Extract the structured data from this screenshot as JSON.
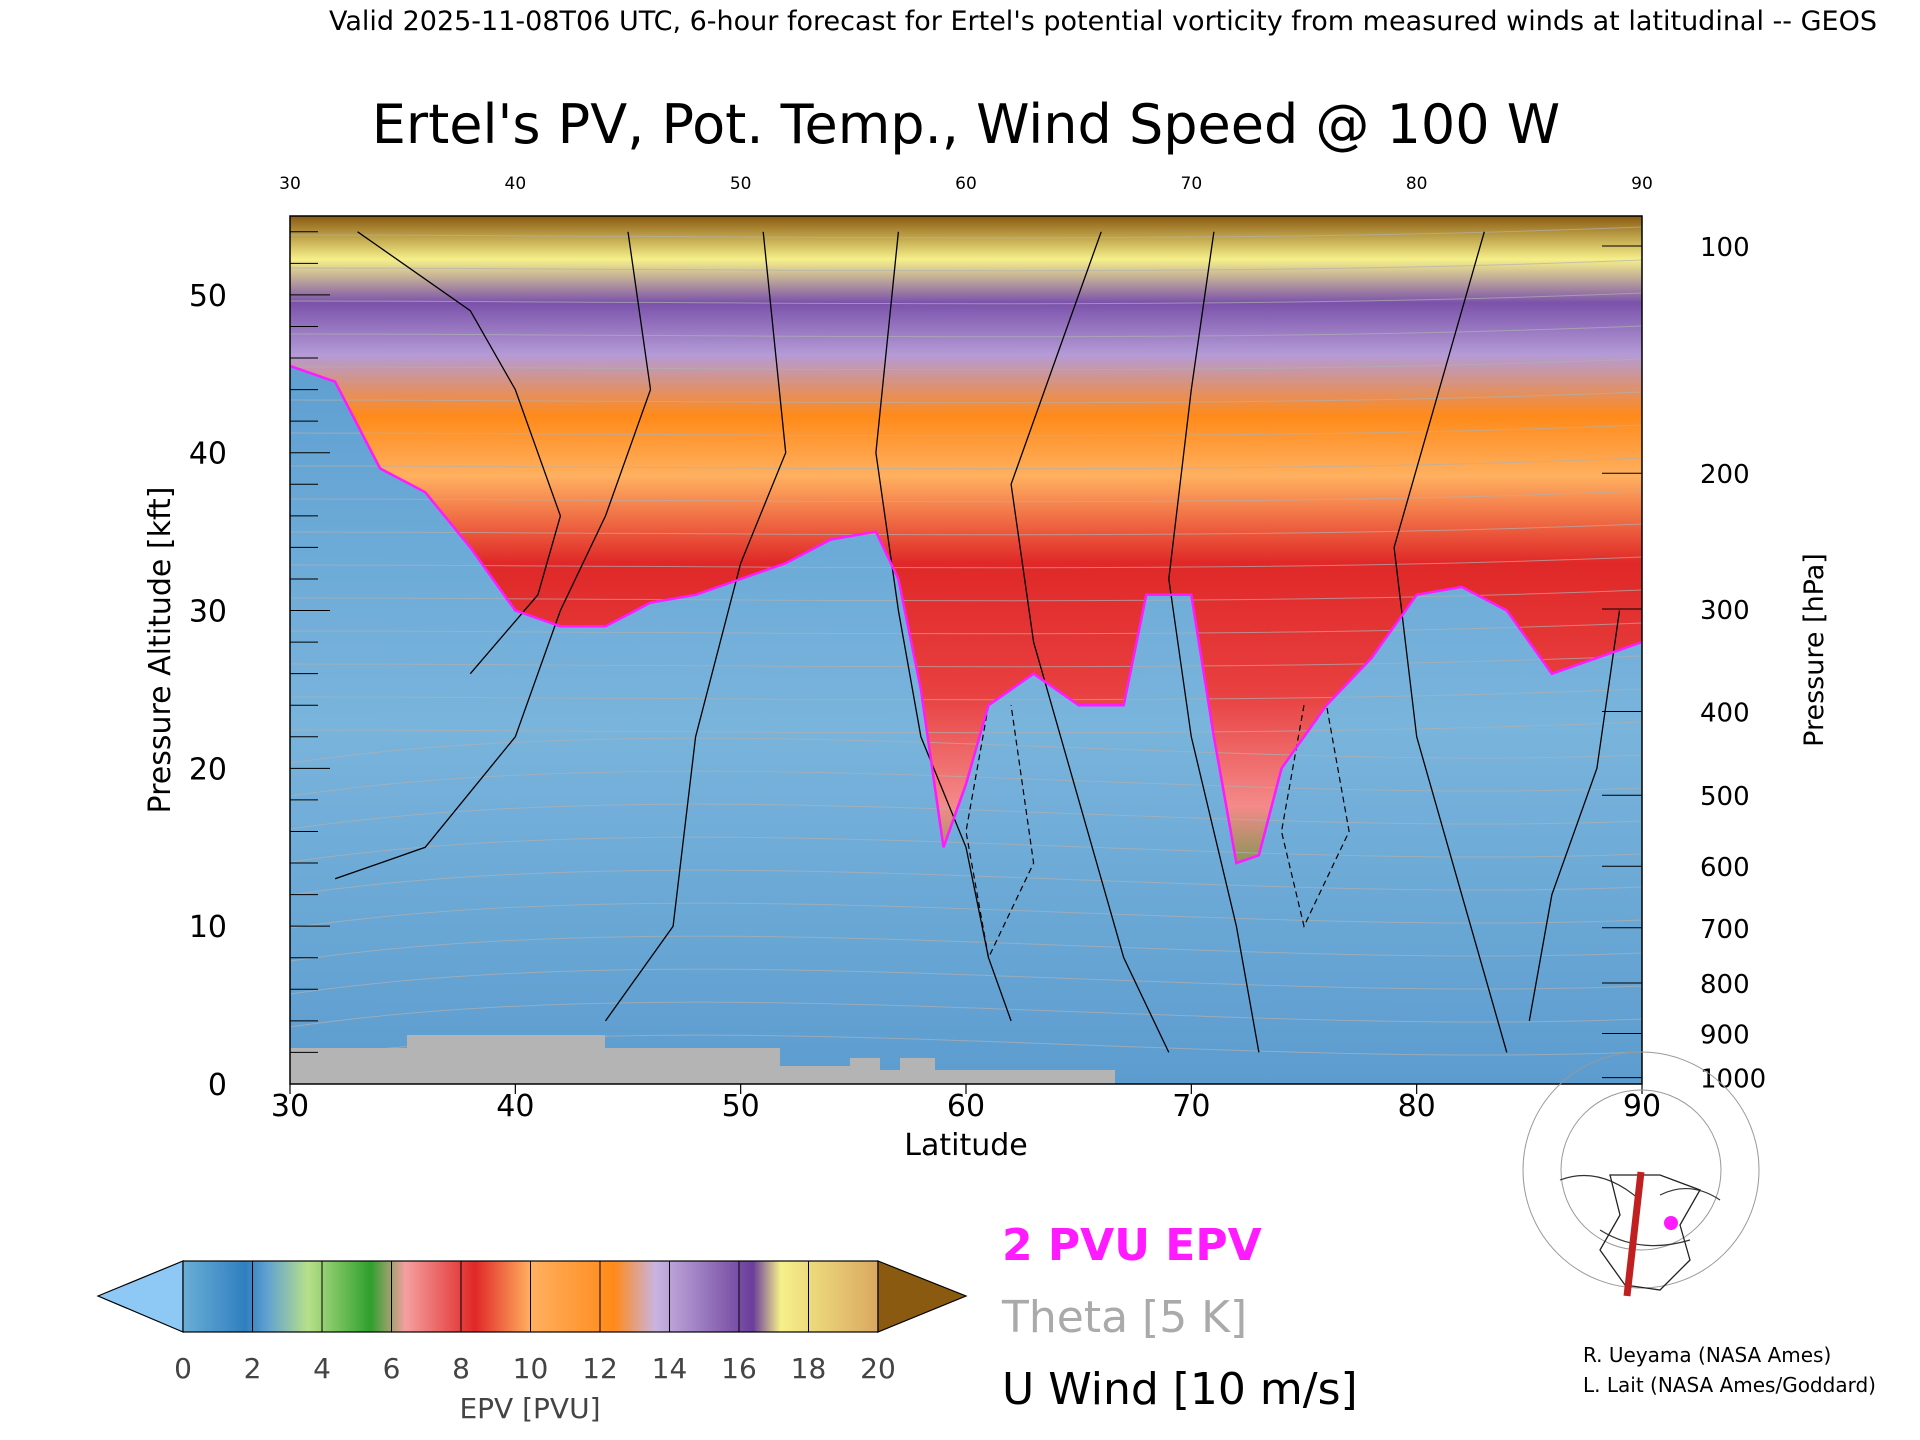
{
  "header": {
    "valid_line": "Valid 2025-11-08T06 UTC, 6-hour forecast for Ertel's potential vorticity from measured winds at latitudinal -- GEOS",
    "title": "Ertel's PV, Pot. Temp., Wind Speed @ 100 W"
  },
  "chart_data": {
    "type": "heatmap",
    "title": "Ertel's PV, Pot. Temp., Wind Speed @ 100 W",
    "xlabel": "Latitude",
    "ylabel": "Pressure Altitude [kft]",
    "y2label": "Pressure [hPa]",
    "xlim": [
      30,
      90
    ],
    "ylim": [
      0,
      55
    ],
    "x_ticks": [
      30,
      40,
      50,
      60,
      70,
      80,
      90
    ],
    "x_tick_labels": [
      "30",
      "40",
      "50",
      "60",
      "70",
      "80",
      "90"
    ],
    "y_ticks": [
      0,
      10,
      20,
      30,
      40,
      50
    ],
    "y_tick_labels": [
      "0",
      "10",
      "20",
      "30",
      "40",
      "50"
    ],
    "pressure_ticks": [
      {
        "label": "100",
        "kft": 53.1
      },
      {
        "label": "200",
        "kft": 38.7
      },
      {
        "label": "300",
        "kft": 30.1
      },
      {
        "label": "400",
        "kft": 23.6
      },
      {
        "label": "500",
        "kft": 18.3
      },
      {
        "label": "600",
        "kft": 13.8
      },
      {
        "label": "700",
        "kft": 9.9
      },
      {
        "label": "800",
        "kft": 6.4
      },
      {
        "label": "900",
        "kft": 3.2
      },
      {
        "label": "1000",
        "kft": 0.4
      }
    ],
    "tropopause_2pvu_kft": [
      {
        "lat": 30,
        "kft": 45.5
      },
      {
        "lat": 32,
        "kft": 44.5
      },
      {
        "lat": 34,
        "kft": 39.0
      },
      {
        "lat": 36,
        "kft": 37.5
      },
      {
        "lat": 38,
        "kft": 34.0
      },
      {
        "lat": 40,
        "kft": 30.0
      },
      {
        "lat": 42,
        "kft": 29.0
      },
      {
        "lat": 44,
        "kft": 29.0
      },
      {
        "lat": 46,
        "kft": 30.5
      },
      {
        "lat": 48,
        "kft": 31.0
      },
      {
        "lat": 50,
        "kft": 32.0
      },
      {
        "lat": 52,
        "kft": 33.0
      },
      {
        "lat": 54,
        "kft": 34.5
      },
      {
        "lat": 56,
        "kft": 35.0
      },
      {
        "lat": 57,
        "kft": 32.0
      },
      {
        "lat": 58,
        "kft": 25.0
      },
      {
        "lat": 59,
        "kft": 15.0
      },
      {
        "lat": 60,
        "kft": 19.0
      },
      {
        "lat": 61,
        "kft": 24.0
      },
      {
        "lat": 63,
        "kft": 26.0
      },
      {
        "lat": 65,
        "kft": 24.0
      },
      {
        "lat": 67,
        "kft": 24.0
      },
      {
        "lat": 68,
        "kft": 31.0
      },
      {
        "lat": 70,
        "kft": 31.0
      },
      {
        "lat": 71,
        "kft": 22.0
      },
      {
        "lat": 72,
        "kft": 14.0
      },
      {
        "lat": 73,
        "kft": 14.5
      },
      {
        "lat": 74,
        "kft": 20.0
      },
      {
        "lat": 76,
        "kft": 24.0
      },
      {
        "lat": 78,
        "kft": 27.0
      },
      {
        "lat": 80,
        "kft": 31.0
      },
      {
        "lat": 82,
        "kft": 31.5
      },
      {
        "lat": 84,
        "kft": 30.0
      },
      {
        "lat": 86,
        "kft": 26.0
      },
      {
        "lat": 88,
        "kft": 27.0
      },
      {
        "lat": 90,
        "kft": 28.0
      }
    ],
    "colorbar": {
      "label": "EPV [PVU]",
      "ticks": [
        "0",
        "2",
        "4",
        "6",
        "8",
        "10",
        "12",
        "14",
        "16",
        "18",
        "20"
      ],
      "colors": [
        "#6aaed6",
        "#2f7fbf",
        "#b8e08a",
        "#2ea02c",
        "#f48a8a",
        "#e02828",
        "#ffb060",
        "#ff8a1a",
        "#b49bd6",
        "#6a3d9a",
        "#f6f08a"
      ],
      "under_color": "#8ec8f5",
      "over_color": "#8a5a10"
    },
    "legend": [
      {
        "label": "2 PVU EPV",
        "color": "#ff1aff"
      },
      {
        "label": "Theta [5 K]",
        "color": "#aaaaaa"
      },
      {
        "label": "U Wind [10 m/s]",
        "color": "#000000"
      }
    ],
    "grid": false
  },
  "credits": {
    "line1": "R. Ueyama (NASA Ames)",
    "line2": "L. Lait (NASA Ames/Goddard)"
  },
  "colors": {
    "tropopause": "#ff1aff",
    "theta": "#aaaaaa",
    "wind": "#000000",
    "ground": "#b4b4b4",
    "track": "#c02020"
  }
}
